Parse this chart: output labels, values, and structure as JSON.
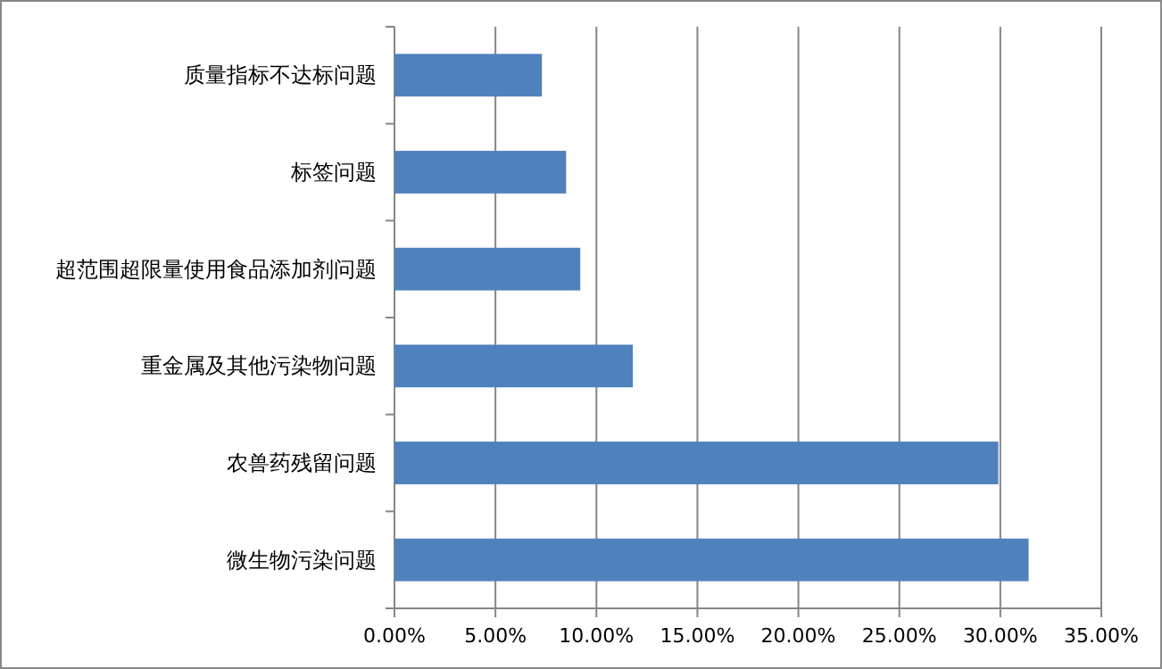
{
  "chart_data": {
    "type": "bar",
    "orientation": "horizontal",
    "categories": [
      "质量指标不达标问题",
      "标签问题",
      "超范围超限量使用食品添加剂问题",
      "重金属及其他污染物问题",
      "农兽药残留问题",
      "微生物污染问题"
    ],
    "values": [
      7.3,
      8.5,
      9.2,
      11.8,
      29.9,
      31.4
    ],
    "color": "#4f81bd",
    "xlim": [
      0,
      35
    ],
    "xticks": [
      {
        "value": 0,
        "label": "0.00%"
      },
      {
        "value": 5,
        "label": "5.00%"
      },
      {
        "value": 10,
        "label": "10.00%"
      },
      {
        "value": 15,
        "label": "15.00%"
      },
      {
        "value": 20,
        "label": "20.00%"
      },
      {
        "value": 25,
        "label": "25.00%"
      },
      {
        "value": 30,
        "label": "30.00%"
      },
      {
        "value": 35,
        "label": "35.00%"
      }
    ],
    "grid": "x"
  }
}
